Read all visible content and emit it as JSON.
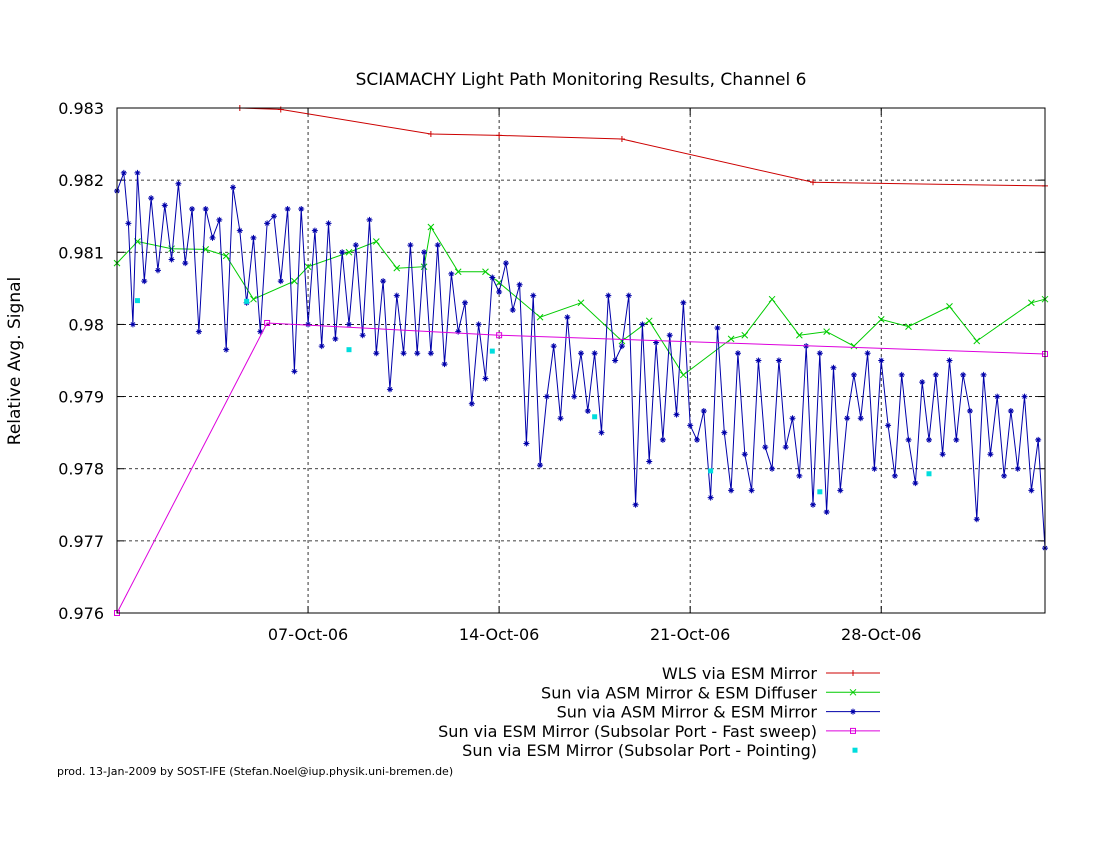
{
  "chart_data": {
    "type": "line",
    "title": "SCIAMACHY Light Path Monitoring Results, Channel 6",
    "xlabel": "",
    "ylabel": "Relative Avg. Signal",
    "xlim": [
      "2006-09-30",
      "2006-11-03"
    ],
    "ylim": [
      0.976,
      0.983
    ],
    "grid": true,
    "legend_position": "bottom-center",
    "x_ticks": [
      {
        "date": "2006-10-07",
        "label": "07-Oct-06"
      },
      {
        "date": "2006-10-14",
        "label": "14-Oct-06"
      },
      {
        "date": "2006-10-21",
        "label": "21-Oct-06"
      },
      {
        "date": "2006-10-28",
        "label": "28-Oct-06"
      }
    ],
    "y_ticks": [
      {
        "value": 0.976,
        "label": "0.976"
      },
      {
        "value": 0.977,
        "label": "0.977"
      },
      {
        "value": 0.978,
        "label": "0.978"
      },
      {
        "value": 0.979,
        "label": "0.979"
      },
      {
        "value": 0.98,
        "label": "0.98"
      },
      {
        "value": 0.981,
        "label": "0.981"
      },
      {
        "value": 0.982,
        "label": "0.982"
      },
      {
        "value": 0.983,
        "label": "0.983"
      }
    ],
    "series": [
      {
        "name": "WLS via ESM Mirror",
        "color": "#cc0000",
        "marker": "plus",
        "line": true,
        "points": [
          [
            "2006-10-04T12:00",
            0.983
          ],
          [
            "2006-10-06T00:00",
            0.98298
          ],
          [
            "2006-10-11T12:00",
            0.98264
          ],
          [
            "2006-10-14T00:00",
            0.98262
          ],
          [
            "2006-10-18T12:00",
            0.98257
          ],
          [
            "2006-10-25T12:00",
            0.98197
          ],
          [
            "2006-11-03T00:00",
            0.98192
          ]
        ]
      },
      {
        "name": "Sun via ASM Mirror & ESM Diffuser",
        "color": "#00cc00",
        "marker": "x",
        "line": true,
        "points": [
          [
            "2006-09-30T00:00",
            0.98085
          ],
          [
            "2006-09-30T18:00",
            0.98115
          ],
          [
            "2006-10-02T00:00",
            0.98105
          ],
          [
            "2006-10-03T06:00",
            0.98104
          ],
          [
            "2006-10-04T00:00",
            0.98095
          ],
          [
            "2006-10-05T00:00",
            0.98035
          ],
          [
            "2006-10-06T12:00",
            0.9806
          ],
          [
            "2006-10-07T00:00",
            0.9808
          ],
          [
            "2006-10-08T12:00",
            0.981
          ],
          [
            "2006-10-09T12:00",
            0.98115
          ],
          [
            "2006-10-10T06:00",
            0.98078
          ],
          [
            "2006-10-11T06:00",
            0.9808
          ],
          [
            "2006-10-11T12:00",
            0.98135
          ],
          [
            "2006-10-12T12:00",
            0.98073
          ],
          [
            "2006-10-13T12:00",
            0.98073
          ],
          [
            "2006-10-14T00:00",
            0.98058
          ],
          [
            "2006-10-15T12:00",
            0.9801
          ],
          [
            "2006-10-17T00:00",
            0.9803
          ],
          [
            "2006-10-18T12:00",
            0.97977
          ],
          [
            "2006-10-19T12:00",
            0.98005
          ],
          [
            "2006-10-20T18:00",
            0.9793
          ],
          [
            "2006-10-22T12:00",
            0.9798
          ],
          [
            "2006-10-23T00:00",
            0.97985
          ],
          [
            "2006-10-24T00:00",
            0.98035
          ],
          [
            "2006-10-25T00:00",
            0.97985
          ],
          [
            "2006-10-26T00:00",
            0.9799
          ],
          [
            "2006-10-27T00:00",
            0.9797
          ],
          [
            "2006-10-28T00:00",
            0.98007
          ],
          [
            "2006-10-29T00:00",
            0.97997
          ],
          [
            "2006-10-30T12:00",
            0.98025
          ],
          [
            "2006-10-31T12:00",
            0.97977
          ],
          [
            "2006-11-02T12:00",
            0.9803
          ],
          [
            "2006-11-03T00:00",
            0.98035
          ]
        ]
      },
      {
        "name": "Sun via ASM Mirror & ESM Mirror",
        "color": "#0000aa",
        "marker": "star",
        "line": true,
        "points": [
          [
            "2006-09-30T00:00",
            0.98185
          ],
          [
            "2006-09-30T06:00",
            0.9821
          ],
          [
            "2006-09-30T10:00",
            0.9814
          ],
          [
            "2006-09-30T14:00",
            0.98
          ],
          [
            "2006-09-30T18:00",
            0.9821
          ],
          [
            "2006-10-01T00:00",
            0.9806
          ],
          [
            "2006-10-01T06:00",
            0.98175
          ],
          [
            "2006-10-01T12:00",
            0.98075
          ],
          [
            "2006-10-01T18:00",
            0.98165
          ],
          [
            "2006-10-02T00:00",
            0.9809
          ],
          [
            "2006-10-02T06:00",
            0.98195
          ],
          [
            "2006-10-02T12:00",
            0.98085
          ],
          [
            "2006-10-02T18:00",
            0.9816
          ],
          [
            "2006-10-03T00:00",
            0.9799
          ],
          [
            "2006-10-03T06:00",
            0.9816
          ],
          [
            "2006-10-03T12:00",
            0.9812
          ],
          [
            "2006-10-03T18:00",
            0.98145
          ],
          [
            "2006-10-04T00:00",
            0.97965
          ],
          [
            "2006-10-04T06:00",
            0.9819
          ],
          [
            "2006-10-04T12:00",
            0.9813
          ],
          [
            "2006-10-04T18:00",
            0.9803
          ],
          [
            "2006-10-05T00:00",
            0.9812
          ],
          [
            "2006-10-05T06:00",
            0.9799
          ],
          [
            "2006-10-05T12:00",
            0.9814
          ],
          [
            "2006-10-05T18:00",
            0.9815
          ],
          [
            "2006-10-06T00:00",
            0.9806
          ],
          [
            "2006-10-06T06:00",
            0.9816
          ],
          [
            "2006-10-06T12:00",
            0.97935
          ],
          [
            "2006-10-06T18:00",
            0.9816
          ],
          [
            "2006-10-07T00:00",
            0.98
          ],
          [
            "2006-10-07T06:00",
            0.9813
          ],
          [
            "2006-10-07T12:00",
            0.9797
          ],
          [
            "2006-10-07T18:00",
            0.9814
          ],
          [
            "2006-10-08T00:00",
            0.9798
          ],
          [
            "2006-10-08T06:00",
            0.981
          ],
          [
            "2006-10-08T12:00",
            0.98
          ],
          [
            "2006-10-08T18:00",
            0.9811
          ],
          [
            "2006-10-09T00:00",
            0.97985
          ],
          [
            "2006-10-09T06:00",
            0.98145
          ],
          [
            "2006-10-09T12:00",
            0.9796
          ],
          [
            "2006-10-09T18:00",
            0.9806
          ],
          [
            "2006-10-10T00:00",
            0.9791
          ],
          [
            "2006-10-10T06:00",
            0.9804
          ],
          [
            "2006-10-10T12:00",
            0.9796
          ],
          [
            "2006-10-10T18:00",
            0.9811
          ],
          [
            "2006-10-11T00:00",
            0.9796
          ],
          [
            "2006-10-11T06:00",
            0.981
          ],
          [
            "2006-10-11T12:00",
            0.9796
          ],
          [
            "2006-10-11T18:00",
            0.9811
          ],
          [
            "2006-10-12T00:00",
            0.97945
          ],
          [
            "2006-10-12T06:00",
            0.9807
          ],
          [
            "2006-10-12T12:00",
            0.9799
          ],
          [
            "2006-10-12T18:00",
            0.9803
          ],
          [
            "2006-10-13T00:00",
            0.9789
          ],
          [
            "2006-10-13T06:00",
            0.98
          ],
          [
            "2006-10-13T12:00",
            0.97925
          ],
          [
            "2006-10-13T18:00",
            0.98065
          ],
          [
            "2006-10-14T00:00",
            0.98045
          ],
          [
            "2006-10-14T06:00",
            0.98085
          ],
          [
            "2006-10-14T12:00",
            0.9802
          ],
          [
            "2006-10-14T18:00",
            0.98055
          ],
          [
            "2006-10-15T00:00",
            0.97835
          ],
          [
            "2006-10-15T06:00",
            0.9804
          ],
          [
            "2006-10-15T12:00",
            0.97805
          ],
          [
            "2006-10-15T18:00",
            0.979
          ],
          [
            "2006-10-16T00:00",
            0.9797
          ],
          [
            "2006-10-16T06:00",
            0.9787
          ],
          [
            "2006-10-16T12:00",
            0.9801
          ],
          [
            "2006-10-16T18:00",
            0.979
          ],
          [
            "2006-10-17T00:00",
            0.9796
          ],
          [
            "2006-10-17T06:00",
            0.9788
          ],
          [
            "2006-10-17T12:00",
            0.9796
          ],
          [
            "2006-10-17T18:00",
            0.9785
          ],
          [
            "2006-10-18T00:00",
            0.9804
          ],
          [
            "2006-10-18T06:00",
            0.9795
          ],
          [
            "2006-10-18T12:00",
            0.9797
          ],
          [
            "2006-10-18T18:00",
            0.9804
          ],
          [
            "2006-10-19T00:00",
            0.9775
          ],
          [
            "2006-10-19T06:00",
            0.98
          ],
          [
            "2006-10-19T12:00",
            0.9781
          ],
          [
            "2006-10-19T18:00",
            0.97975
          ],
          [
            "2006-10-20T00:00",
            0.9784
          ],
          [
            "2006-10-20T06:00",
            0.97985
          ],
          [
            "2006-10-20T12:00",
            0.97875
          ],
          [
            "2006-10-20T18:00",
            0.9803
          ],
          [
            "2006-10-21T00:00",
            0.9786
          ],
          [
            "2006-10-21T06:00",
            0.9784
          ],
          [
            "2006-10-21T12:00",
            0.9788
          ],
          [
            "2006-10-21T18:00",
            0.9776
          ],
          [
            "2006-10-22T00:00",
            0.97995
          ],
          [
            "2006-10-22T06:00",
            0.9785
          ],
          [
            "2006-10-22T12:00",
            0.9777
          ],
          [
            "2006-10-22T18:00",
            0.9796
          ],
          [
            "2006-10-23T00:00",
            0.9782
          ],
          [
            "2006-10-23T06:00",
            0.9777
          ],
          [
            "2006-10-23T12:00",
            0.9795
          ],
          [
            "2006-10-23T18:00",
            0.9783
          ],
          [
            "2006-10-24T00:00",
            0.978
          ],
          [
            "2006-10-24T06:00",
            0.9795
          ],
          [
            "2006-10-24T12:00",
            0.9783
          ],
          [
            "2006-10-24T18:00",
            0.9787
          ],
          [
            "2006-10-25T00:00",
            0.9779
          ],
          [
            "2006-10-25T06:00",
            0.9797
          ],
          [
            "2006-10-25T12:00",
            0.9775
          ],
          [
            "2006-10-25T18:00",
            0.9796
          ],
          [
            "2006-10-26T00:00",
            0.9774
          ],
          [
            "2006-10-26T06:00",
            0.9794
          ],
          [
            "2006-10-26T12:00",
            0.9777
          ],
          [
            "2006-10-26T18:00",
            0.9787
          ],
          [
            "2006-10-27T00:00",
            0.9793
          ],
          [
            "2006-10-27T06:00",
            0.9787
          ],
          [
            "2006-10-27T12:00",
            0.9796
          ],
          [
            "2006-10-27T18:00",
            0.978
          ],
          [
            "2006-10-28T00:00",
            0.9795
          ],
          [
            "2006-10-28T06:00",
            0.9786
          ],
          [
            "2006-10-28T12:00",
            0.9779
          ],
          [
            "2006-10-28T18:00",
            0.9793
          ],
          [
            "2006-10-29T00:00",
            0.9784
          ],
          [
            "2006-10-29T06:00",
            0.9778
          ],
          [
            "2006-10-29T12:00",
            0.9792
          ],
          [
            "2006-10-29T18:00",
            0.9784
          ],
          [
            "2006-10-30T00:00",
            0.9793
          ],
          [
            "2006-10-30T06:00",
            0.9782
          ],
          [
            "2006-10-30T12:00",
            0.9795
          ],
          [
            "2006-10-30T18:00",
            0.9784
          ],
          [
            "2006-10-31T00:00",
            0.9793
          ],
          [
            "2006-10-31T06:00",
            0.9788
          ],
          [
            "2006-10-31T12:00",
            0.9773
          ],
          [
            "2006-10-31T18:00",
            0.9793
          ],
          [
            "2006-11-01T00:00",
            0.9782
          ],
          [
            "2006-11-01T06:00",
            0.979
          ],
          [
            "2006-11-01T12:00",
            0.9779
          ],
          [
            "2006-11-01T18:00",
            0.9788
          ],
          [
            "2006-11-02T00:00",
            0.978
          ],
          [
            "2006-11-02T06:00",
            0.979
          ],
          [
            "2006-11-02T12:00",
            0.9777
          ],
          [
            "2006-11-02T18:00",
            0.9784
          ],
          [
            "2006-11-03T00:00",
            0.9769
          ]
        ]
      },
      {
        "name": "Sun via ESM Mirror (Subsolar Port - Fast sweep)",
        "color": "#dd00dd",
        "marker": "square",
        "line": true,
        "points": [
          [
            "2006-09-30T00:00",
            0.976
          ],
          [
            "2006-10-05T12:00",
            0.98002
          ],
          [
            "2006-10-14T00:00",
            0.97985
          ],
          [
            "2006-11-03T00:00",
            0.97959
          ]
        ]
      },
      {
        "name": "Sun via ESM Mirror (Subsolar Port - Pointing)",
        "color": "#00dddd",
        "marker": "dot",
        "line": false,
        "points": [
          [
            "2006-09-30T18:00",
            0.98033
          ],
          [
            "2006-10-04T18:00",
            0.98032
          ],
          [
            "2006-10-08T12:00",
            0.97965
          ],
          [
            "2006-10-13T18:00",
            0.97963
          ],
          [
            "2006-10-17T12:00",
            0.97872
          ],
          [
            "2006-10-21T18:00",
            0.97797
          ],
          [
            "2006-10-25T18:00",
            0.97768
          ],
          [
            "2006-10-29T18:00",
            0.97793
          ]
        ]
      }
    ]
  },
  "footer": {
    "credit": "prod. 13-Jan-2009 by SOST-IFE (Stefan.Noel@iup.physik.uni-bremen.de)"
  }
}
